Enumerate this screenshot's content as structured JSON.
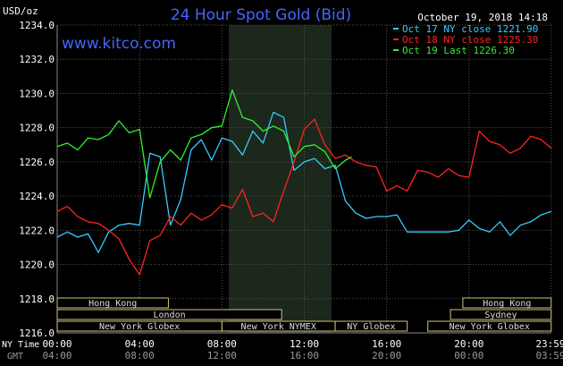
{
  "chart_data": {
    "type": "line",
    "title": "24 Hour Spot Gold (Bid)",
    "unit_label": "USD/oz",
    "watermark": "www.kitco.com",
    "datestamp": "October 19, 2018 14:18",
    "ylim": [
      1216.0,
      1234.0
    ],
    "y_ticks": [
      "1234.0",
      "1232.0",
      "1230.0",
      "1228.0",
      "1226.0",
      "1224.0",
      "1222.0",
      "1220.0",
      "1218.0",
      "1216.0"
    ],
    "x_range_hours": [
      0,
      24
    ],
    "x_ticks_ny": [
      "00:00",
      "04:00",
      "08:00",
      "12:00",
      "16:00",
      "20:00",
      "23:59"
    ],
    "x_ticks_gmt": [
      "04:00",
      "08:00",
      "12:00",
      "16:00",
      "20:00",
      "00:00",
      "03:59"
    ],
    "row_labels": {
      "ny": "NY Time",
      "gmt": "GMT"
    },
    "highlight_band_hours": [
      8.33,
      13.33
    ],
    "legend": [
      {
        "label": "Oct 17 NY close 1221.90",
        "color": "#33ccff"
      },
      {
        "label": "Oct 18 NY close 1225.30",
        "color": "#ff2222"
      },
      {
        "label": "Oct 19 Last 1226.30",
        "color": "#33ee33"
      }
    ],
    "sessions": [
      {
        "label": "Hong Kong",
        "start": 0.0,
        "end": 5.4,
        "row": 0
      },
      {
        "label": "Hong Kong",
        "start": 19.7,
        "end": 23.99,
        "row": 0
      },
      {
        "label": "London",
        "start": 0.0,
        "end": 10.9,
        "row": 1
      },
      {
        "label": "Sydney",
        "start": 19.1,
        "end": 23.99,
        "row": 1
      },
      {
        "label": "New York Globex",
        "start": 0.0,
        "end": 8.0,
        "row": 2
      },
      {
        "label": "New York NYMEX",
        "start": 8.0,
        "end": 13.5,
        "row": 2
      },
      {
        "label": "NY Globex",
        "start": 13.5,
        "end": 17.0,
        "row": 2
      },
      {
        "label": "New York Globex",
        "start": 18.0,
        "end": 23.99,
        "row": 2
      }
    ],
    "series": [
      {
        "name": "Oct 17 NY close 1221.90",
        "color": "#33ccff",
        "x": [
          0,
          0.5,
          1,
          1.5,
          2,
          2.5,
          3,
          3.5,
          4,
          4.5,
          5,
          5.5,
          6,
          6.5,
          7,
          7.5,
          8,
          8.5,
          9,
          9.5,
          10,
          10.5,
          11,
          11.5,
          12,
          12.5,
          13,
          13.5,
          14,
          14.5,
          15,
          15.5,
          16,
          16.5,
          17,
          17.5,
          18,
          18.5,
          19,
          19.5,
          20,
          20.5,
          21,
          21.5,
          22,
          22.5,
          23,
          23.5,
          24
        ],
        "y": [
          1221.6,
          1221.9,
          1221.6,
          1221.8,
          1220.7,
          1221.9,
          1222.3,
          1222.4,
          1222.3,
          1226.5,
          1226.3,
          1222.3,
          1223.8,
          1226.7,
          1227.3,
          1226.1,
          1227.4,
          1227.2,
          1226.4,
          1227.8,
          1227.1,
          1228.9,
          1228.6,
          1225.5,
          1226.0,
          1226.2,
          1225.6,
          1225.8,
          1223.7,
          1223.0,
          1222.7,
          1222.8,
          1222.8,
          1222.9,
          1221.9,
          1221.9,
          1221.9,
          1221.9,
          1221.9,
          1222.0,
          1222.6,
          1222.1,
          1221.9,
          1222.5,
          1221.7,
          1222.3,
          1222.5,
          1222.9,
          1223.1
        ]
      },
      {
        "name": "Oct 18 NY close 1225.30",
        "color": "#ff2222",
        "x": [
          0,
          0.5,
          1,
          1.5,
          2,
          2.5,
          3,
          3.5,
          4,
          4.5,
          5,
          5.5,
          6,
          6.5,
          7,
          7.5,
          8,
          8.5,
          9,
          9.5,
          10,
          10.5,
          11,
          11.5,
          12,
          12.5,
          13,
          13.5,
          14,
          14.5,
          15,
          15.5,
          16,
          16.5,
          17,
          17.5,
          18,
          18.5,
          19,
          19.5,
          20,
          20.5,
          21,
          21.5,
          22,
          22.5,
          23,
          23.5,
          24
        ],
        "y": [
          1223.1,
          1223.4,
          1222.8,
          1222.5,
          1222.4,
          1222.0,
          1221.5,
          1220.3,
          1219.4,
          1221.4,
          1221.7,
          1222.8,
          1222.3,
          1223.0,
          1222.6,
          1222.9,
          1223.5,
          1223.3,
          1224.4,
          1222.8,
          1223.0,
          1222.5,
          1224.3,
          1226.0,
          1227.9,
          1228.5,
          1227.0,
          1226.2,
          1226.4,
          1226.0,
          1225.8,
          1225.7,
          1224.3,
          1224.6,
          1224.3,
          1225.5,
          1225.4,
          1225.1,
          1225.6,
          1225.2,
          1225.1,
          1227.8,
          1227.2,
          1227.0,
          1226.5,
          1226.8,
          1227.5,
          1227.3,
          1226.8
        ]
      },
      {
        "name": "Oct 19 Last 1226.30",
        "color": "#33ee33",
        "x": [
          0,
          0.5,
          1,
          1.5,
          2,
          2.5,
          3,
          3.5,
          4,
          4.5,
          5,
          5.5,
          6,
          6.5,
          7,
          7.5,
          8,
          8.5,
          9,
          9.5,
          10,
          10.5,
          11,
          11.5,
          12,
          12.5,
          13,
          13.5,
          14,
          14.3
        ],
        "y": [
          1226.9,
          1227.1,
          1226.7,
          1227.4,
          1227.3,
          1227.6,
          1228.4,
          1227.7,
          1227.9,
          1223.9,
          1226.0,
          1226.7,
          1226.1,
          1227.4,
          1227.6,
          1228.0,
          1228.1,
          1230.2,
          1228.6,
          1228.4,
          1227.8,
          1228.1,
          1227.8,
          1226.3,
          1226.9,
          1227.0,
          1226.6,
          1225.6,
          1226.1,
          1226.3
        ]
      }
    ]
  }
}
